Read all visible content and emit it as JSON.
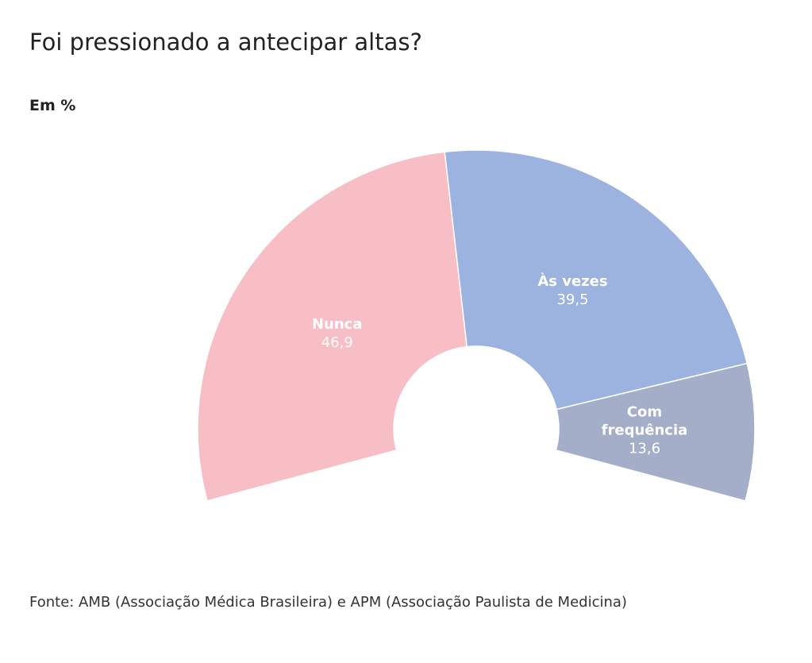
{
  "chart_data": {
    "type": "pie",
    "title": "Foi pressionado a antecipar altas?",
    "subtitle": "Em %",
    "source": "Fonte: AMB (Associação Médica Brasileira) e APM (Associação Paulista de Medicina)",
    "slices": [
      {
        "label_lines": [
          "Nunca"
        ],
        "value": 46.9,
        "value_text": "46,9",
        "color": "#f7bec6"
      },
      {
        "label_lines": [
          "Às vezes"
        ],
        "value": 39.5,
        "value_text": "39,5",
        "color": "#9db3df"
      },
      {
        "label_lines": [
          "Com",
          "frequência"
        ],
        "value": 13.6,
        "value_text": "13,6",
        "color": "#a5aec9"
      }
    ]
  }
}
